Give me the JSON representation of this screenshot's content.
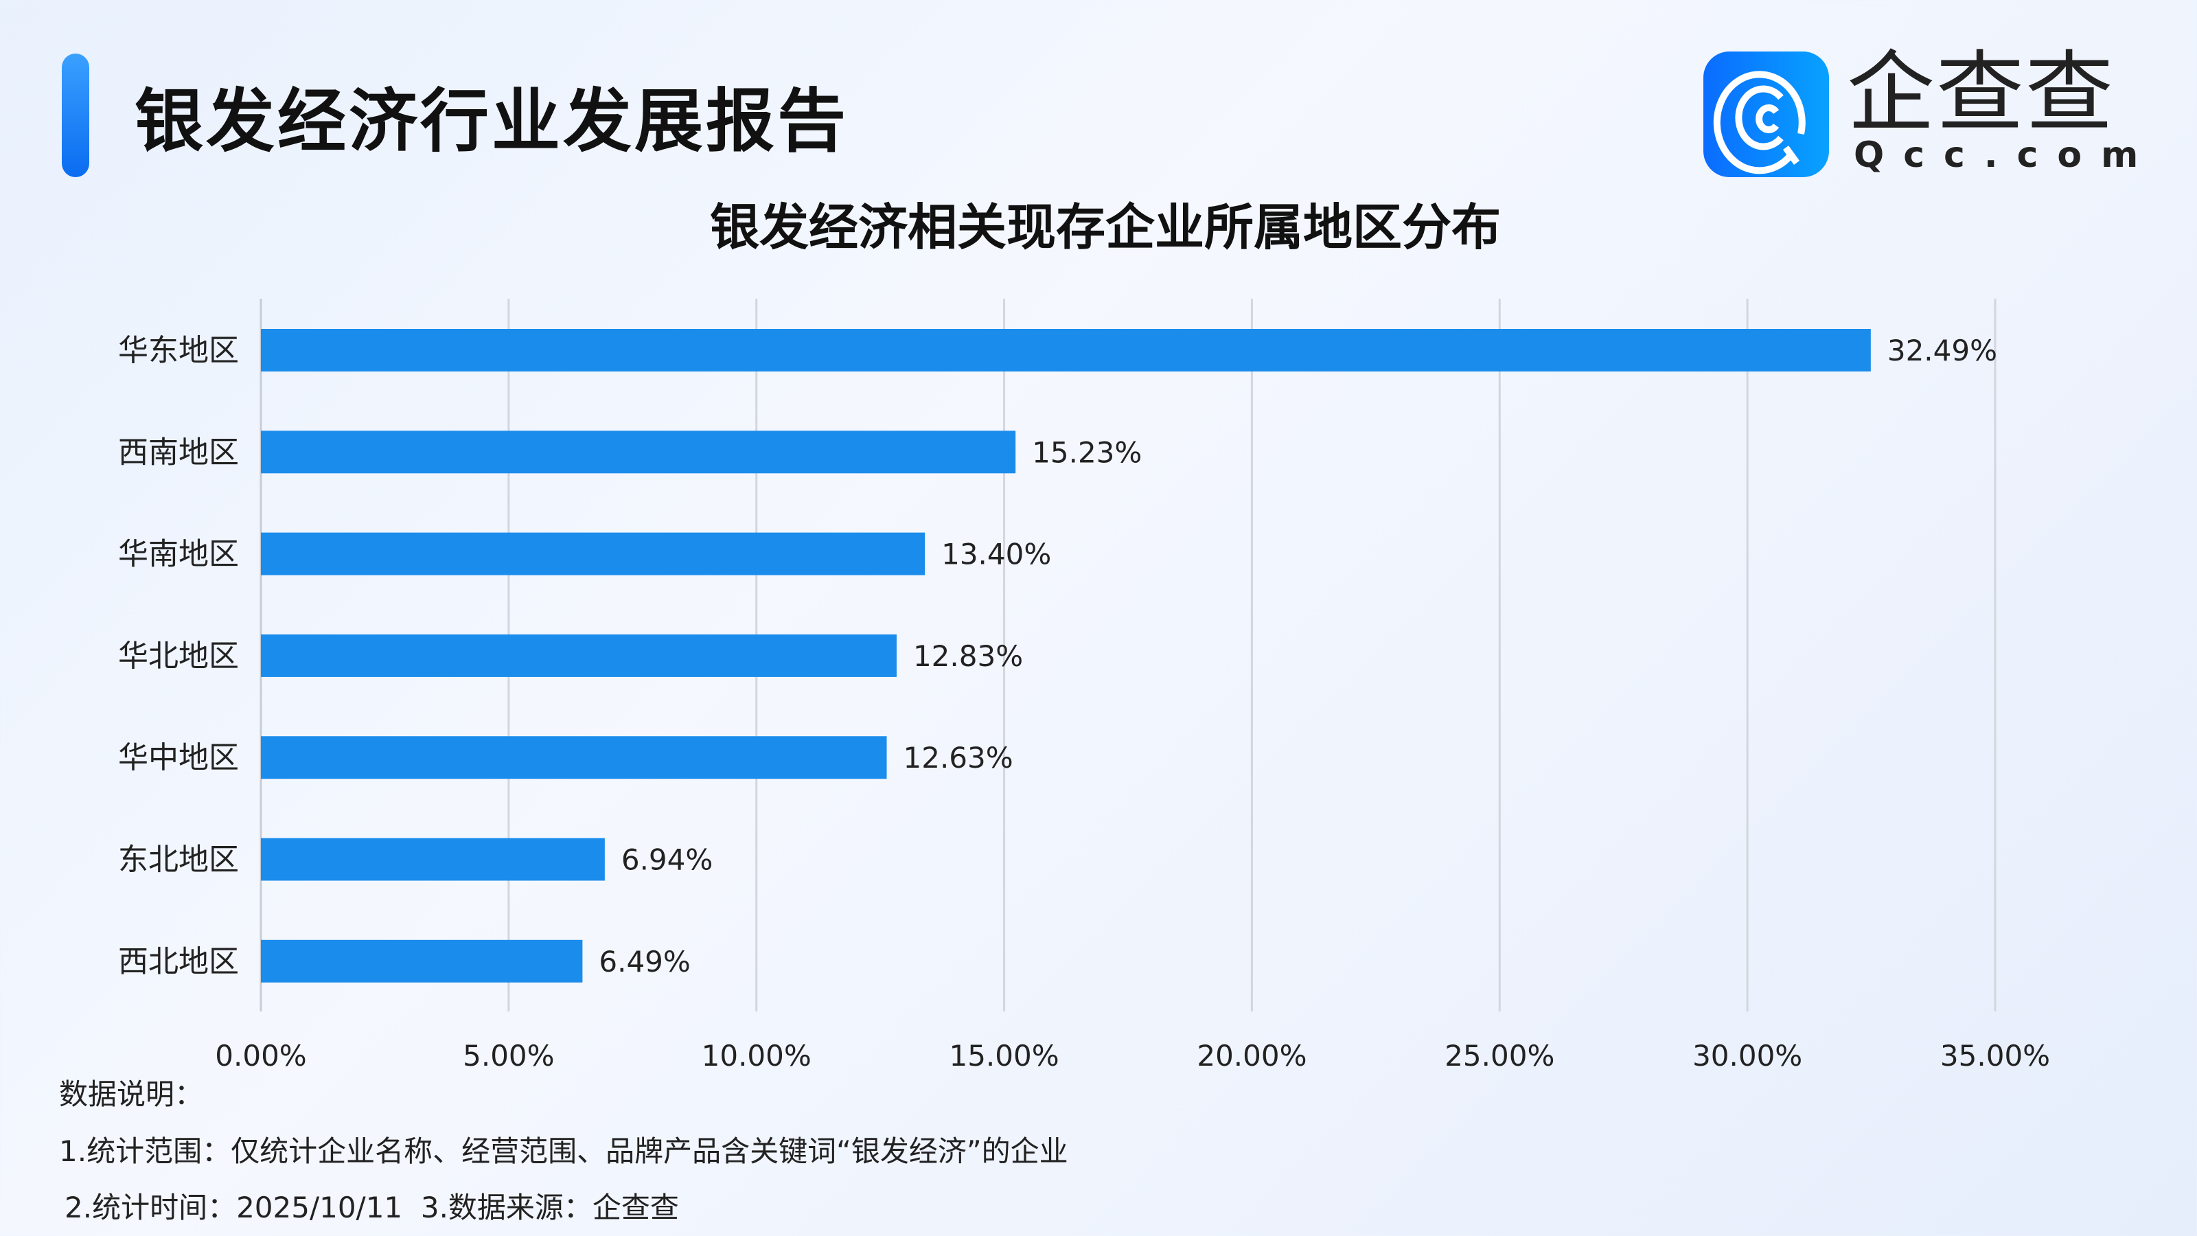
{
  "header": {
    "title": "银发经济行业发展报告",
    "logo_text": "企查查",
    "logo_sub": "Qcc.com",
    "accent_color": "#1a8cec"
  },
  "chart_data": {
    "type": "bar",
    "orientation": "horizontal",
    "title": "银发经济相关现存企业所属地区分布",
    "categories": [
      "华东地区",
      "西南地区",
      "华南地区",
      "华北地区",
      "华中地区",
      "东北地区",
      "西北地区"
    ],
    "values": [
      32.49,
      15.23,
      13.4,
      12.83,
      12.63,
      6.94,
      6.49
    ],
    "data_labels": [
      "32.49%",
      "15.23%",
      "13.40%",
      "12.83%",
      "12.63%",
      "6.94%",
      "6.49%"
    ],
    "xlim": [
      0,
      35
    ],
    "x_ticks": [
      "0.00%",
      "5.00%",
      "10.00%",
      "15.00%",
      "20.00%",
      "25.00%",
      "30.00%",
      "35.00%"
    ],
    "grid": "vertical",
    "bar_color": "#1a8cec"
  },
  "footer": {
    "heading": "数据说明：",
    "line1": "1.统计范围：仅统计企业名称、经营范围、品牌产品含关键词“银发经济”的企业",
    "line2": "2.统计时间：2025/10/11  3.数据来源：企查查"
  }
}
